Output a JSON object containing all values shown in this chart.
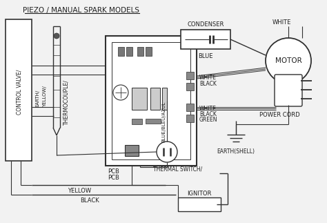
{
  "title": "PIEZO / MANUAL SPARK MODELS",
  "bg_color": "#f2f2f2",
  "line_color": "#303030",
  "text_color": "#202020",
  "labels": {
    "control_valve": "CONTROL VALVE/",
    "thermocouple": "THERMOCOUPLE/",
    "earth": "EARTH/",
    "yellow": "YELLOW/",
    "blue_bleu": "BLUE/BLEU/AZUL",
    "thermal_switch": "THERMAL SWITCH/",
    "pcb1": "PCB",
    "pcb2": "PCB",
    "condenser": "CONDENSER",
    "white_top": "WHITE",
    "blue_label": "BLUE",
    "motor": "MOTOR",
    "white1": "WHITE",
    "black1": "BLACK",
    "white2": "WHITE",
    "black2": "BLACK",
    "green": "GREEN",
    "power_cord": "POWER CORD",
    "earth_shell": "EARTH(SHELL)",
    "ignitor": "IGNITOR",
    "yellow_bottom": "YELLOW",
    "black_bottom": "BLACK"
  }
}
